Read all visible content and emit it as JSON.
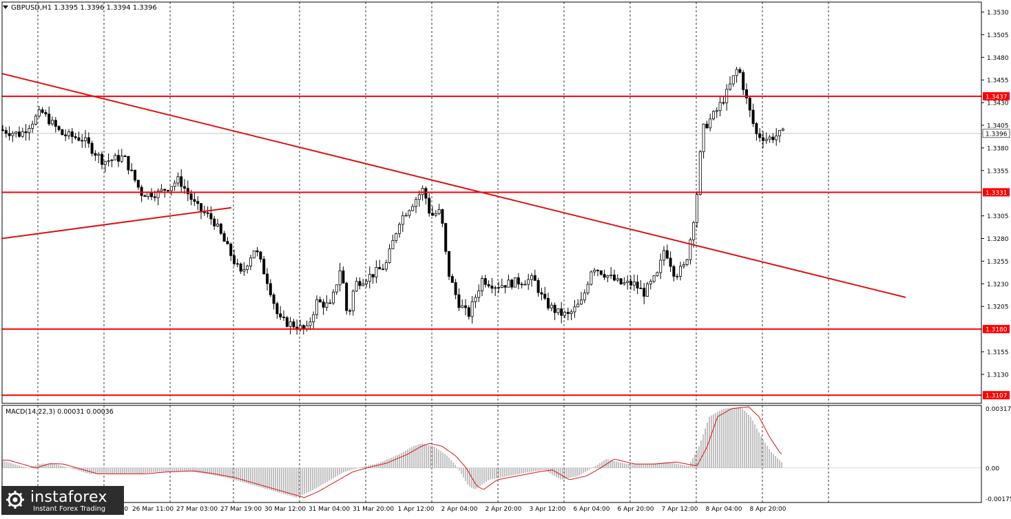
{
  "chart_data": [
    {
      "type": "candlestick",
      "symbol_label": "GBPUSD,H1  1.3395 1.3396 1.3394 1.3396",
      "last_price": 1.3396,
      "last_price_label": "1.3396",
      "ylim": [
        1.3098,
        1.3541
      ],
      "y_ticks": [
        "1.3530",
        "1.3505",
        "1.3480",
        "1.3455",
        "1.3430",
        "1.3405",
        "1.3380",
        "1.3355",
        "1.3305",
        "1.3280",
        "1.3255",
        "1.3230",
        "1.3205",
        "1.3155",
        "1.3130"
      ],
      "levels": [
        {
          "label": "1.3437",
          "value": 1.3437,
          "color": "#ff0000"
        },
        {
          "label": "1.3331",
          "value": 1.3331,
          "color": "#ff0000"
        },
        {
          "label": "1.3180",
          "value": 1.318,
          "color": "#ff0000"
        },
        {
          "label": "1.3107",
          "value": 1.3107,
          "color": "#ff0000"
        }
      ],
      "x_labels": [
        "26 Mar 11:00",
        "27 Mar 03:00",
        "27 Mar 19:00",
        "30 Mar 12:00",
        "31 Mar 04:00",
        "31 Mar 20:00",
        "1 Apr 12:00",
        "2 Apr 04:00",
        "2 Apr 20:00",
        "3 Apr 12:00",
        "6 Apr 04:00",
        "6 Apr 20:00",
        "7 Apr 12:00",
        "8 Apr 04:00",
        "8 Apr 20:00"
      ],
      "x_labels_partial": [
        "2",
        "19:00"
      ],
      "path": [
        [
          0,
          1.34
        ],
        [
          30,
          1.3395
        ],
        [
          60,
          1.342
        ],
        [
          90,
          1.3395
        ],
        [
          120,
          1.339
        ],
        [
          150,
          1.3365
        ],
        [
          180,
          1.337
        ],
        [
          205,
          1.333
        ],
        [
          230,
          1.333
        ],
        [
          260,
          1.3345
        ],
        [
          285,
          1.3315
        ],
        [
          310,
          1.33
        ],
        [
          330,
          1.327
        ],
        [
          350,
          1.324
        ],
        [
          370,
          1.327
        ],
        [
          390,
          1.323
        ],
        [
          405,
          1.319
        ],
        [
          425,
          1.3185
        ],
        [
          445,
          1.3178
        ],
        [
          460,
          1.321
        ],
        [
          480,
          1.3205
        ],
        [
          495,
          1.325
        ],
        [
          505,
          1.319
        ],
        [
          515,
          1.323
        ],
        [
          540,
          1.324
        ],
        [
          560,
          1.325
        ],
        [
          580,
          1.33
        ],
        [
          600,
          1.332
        ],
        [
          615,
          1.3335
        ],
        [
          625,
          1.3305
        ],
        [
          640,
          1.331
        ],
        [
          650,
          1.3245
        ],
        [
          665,
          1.321
        ],
        [
          680,
          1.3195
        ],
        [
          700,
          1.3235
        ],
        [
          720,
          1.3228
        ],
        [
          750,
          1.3232
        ],
        [
          775,
          1.3235
        ],
        [
          790,
          1.321
        ],
        [
          810,
          1.3198
        ],
        [
          825,
          1.3195
        ],
        [
          845,
          1.321
        ],
        [
          860,
          1.325
        ],
        [
          880,
          1.324
        ],
        [
          900,
          1.323
        ],
        [
          920,
          1.323
        ],
        [
          935,
          1.322
        ],
        [
          955,
          1.324
        ],
        [
          965,
          1.327
        ],
        [
          980,
          1.324
        ],
        [
          995,
          1.325
        ],
        [
          1005,
          1.329
        ],
        [
          1012,
          1.333
        ],
        [
          1020,
          1.34
        ],
        [
          1040,
          1.342
        ],
        [
          1055,
          1.344
        ],
        [
          1072,
          1.347
        ],
        [
          1085,
          1.343
        ],
        [
          1098,
          1.3395
        ],
        [
          1115,
          1.339
        ],
        [
          1135,
          1.3396
        ]
      ],
      "trendlines": [
        {
          "from": [
            3,
            1.3462
          ],
          "to": [
            1315,
            1.3215
          ],
          "color": "#dd1111"
        },
        {
          "from": [
            3,
            1.328
          ],
          "to": [
            336,
            1.3314
          ],
          "color": "#dd1111"
        }
      ]
    },
    {
      "type": "histogram",
      "indicator_label": "MACD(14,22,3) 0.00031 0.00036",
      "ylim": [
        -0.00175,
        0.00317
      ],
      "y_ticks": [
        "0.00317",
        "0.00",
        "-0.00175"
      ],
      "macd_path": [
        [
          0,
          0.0004
        ],
        [
          20,
          0.0002
        ],
        [
          40,
          0.0
        ],
        [
          60,
          0.00022
        ],
        [
          80,
          0.0002
        ],
        [
          100,
          0.0
        ],
        [
          130,
          -0.0003
        ],
        [
          160,
          -0.0003
        ],
        [
          200,
          -0.0003
        ],
        [
          230,
          -0.0002
        ],
        [
          270,
          -0.00015
        ],
        [
          300,
          -0.0003
        ],
        [
          330,
          -0.0005
        ],
        [
          360,
          -0.0008
        ],
        [
          400,
          -0.0012
        ],
        [
          430,
          -0.0015
        ],
        [
          450,
          -0.0012
        ],
        [
          480,
          -0.0006
        ],
        [
          500,
          -0.0002
        ],
        [
          520,
          0.0
        ],
        [
          550,
          0.00025
        ],
        [
          580,
          0.0007
        ],
        [
          600,
          0.0011
        ],
        [
          612,
          0.00125
        ],
        [
          630,
          0.0011
        ],
        [
          650,
          0.0006
        ],
        [
          665,
          0.0
        ],
        [
          680,
          -0.0009
        ],
        [
          690,
          -0.0011
        ],
        [
          710,
          -0.0006
        ],
        [
          740,
          -0.0004
        ],
        [
          770,
          -0.0002
        ],
        [
          790,
          -0.0001
        ],
        [
          815,
          -0.0006
        ],
        [
          840,
          -0.0004
        ],
        [
          860,
          0.0
        ],
        [
          880,
          0.00045
        ],
        [
          910,
          0.0002
        ],
        [
          940,
          0.0002
        ],
        [
          970,
          0.0003
        ],
        [
          1000,
          0.0001
        ],
        [
          1015,
          0.0011
        ],
        [
          1030,
          0.0026
        ],
        [
          1050,
          0.003
        ],
        [
          1075,
          0.0031
        ],
        [
          1090,
          0.0026
        ],
        [
          1105,
          0.0016
        ],
        [
          1120,
          0.0008
        ],
        [
          1135,
          0.0003
        ]
      ],
      "signal_color": "#dd1111"
    }
  ],
  "watermark": {
    "name": "instaforex",
    "subtitle": "Instant Forex Trading"
  },
  "colors": {
    "grid": "#000000",
    "candle": "#000000",
    "levels": "#ff0000",
    "hist": "#b0b0b0"
  }
}
